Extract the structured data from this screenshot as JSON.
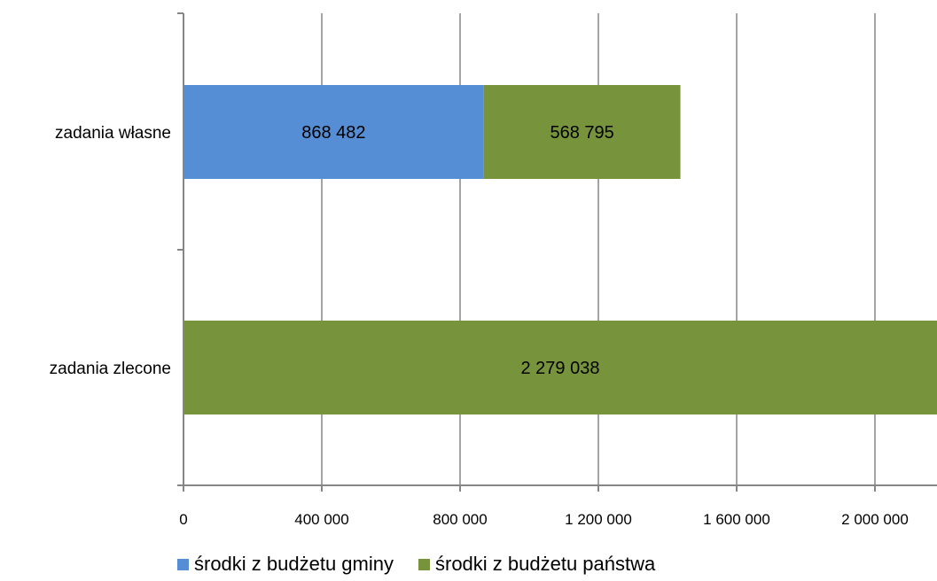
{
  "chart_data": {
    "type": "bar",
    "orientation": "horizontal",
    "stacked": true,
    "categories": [
      "zadania własne",
      "zadania zlecone"
    ],
    "series": [
      {
        "name": "środki z budżetu gminy",
        "values": [
          868482,
          0
        ],
        "labels": [
          "868 482",
          ""
        ],
        "color": "#558ED5"
      },
      {
        "name": "środki z budżetu państwa",
        "values": [
          568795,
          2279038
        ],
        "labels": [
          "568 795",
          "2 279 038"
        ],
        "color": "#77933C"
      }
    ],
    "xlim": [
      0,
      2160000
    ],
    "xticks": [
      0,
      400000,
      800000,
      1200000,
      1600000,
      2000000
    ],
    "xtick_labels": [
      "0",
      "400 000",
      "800 000",
      "1 200 000",
      "1 600 000",
      "2 000 000"
    ],
    "grid": true,
    "legend_position": "bottom"
  }
}
